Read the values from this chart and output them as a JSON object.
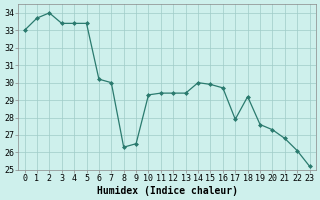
{
  "x": [
    0,
    1,
    2,
    3,
    4,
    5,
    6,
    7,
    8,
    9,
    10,
    11,
    12,
    13,
    14,
    15,
    16,
    17,
    18,
    19,
    20,
    21,
    22,
    23
  ],
  "y": [
    33,
    33.7,
    34,
    33.4,
    33.4,
    33.4,
    30.2,
    30.0,
    26.3,
    26.5,
    29.3,
    29.4,
    29.4,
    29.4,
    30.0,
    29.9,
    29.7,
    27.9,
    29.2,
    27.6,
    27.3,
    26.8,
    26.1,
    25.2
  ],
  "xlabel": "Humidex (Indice chaleur)",
  "ylim": [
    25,
    34.5
  ],
  "xlim": [
    -0.5,
    23.5
  ],
  "yticks": [
    25,
    26,
    27,
    28,
    29,
    30,
    31,
    32,
    33,
    34
  ],
  "xticks": [
    0,
    1,
    2,
    3,
    4,
    5,
    6,
    7,
    8,
    9,
    10,
    11,
    12,
    13,
    14,
    15,
    16,
    17,
    18,
    19,
    20,
    21,
    22,
    23
  ],
  "line_color": "#2a7a6e",
  "marker_color": "#2a7a6e",
  "bg_color": "#cef0ec",
  "grid_color": "#a0ccc8",
  "xlabel_fontsize": 7,
  "tick_fontsize": 6
}
